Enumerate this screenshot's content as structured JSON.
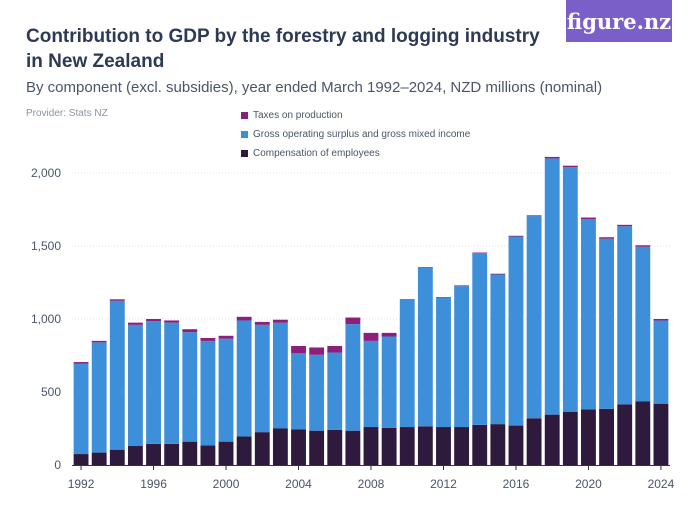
{
  "header": {
    "title": "Contribution to GDP by the forestry and logging industry in New Zealand",
    "subtitle": "By component (excl. subsidies), year ended March 1992–2024, NZD millions (nominal)",
    "provider": "Provider: Stats NZ",
    "logo": "figure.nz"
  },
  "colors": {
    "taxes": "#8b1f7a",
    "surplus": "#3d8fd9",
    "employees": "#2e1a3d",
    "grid": "#e0e0e0",
    "axis": "#333333"
  },
  "chart_data": {
    "type": "bar",
    "stacked": true,
    "title": "Contribution to GDP by the forestry and logging industry in New Zealand",
    "subtitle": "By component (excl. subsidies), year ended March 1992–2024, NZD millions (nominal)",
    "xlabel": "",
    "ylabel": "",
    "ylim": [
      0,
      2200
    ],
    "yticks": [
      0,
      500,
      1000,
      1500,
      2000
    ],
    "ytick_labels": [
      "0",
      "500",
      "1,000",
      "1,500",
      "2,000"
    ],
    "xtick_labels": [
      "1992",
      "1996",
      "2000",
      "2004",
      "2008",
      "2012",
      "2016",
      "2020",
      "2024"
    ],
    "grid": "horizontal",
    "legend_position": "top",
    "categories": [
      "1992",
      "1993",
      "1994",
      "1995",
      "1996",
      "1997",
      "1998",
      "1999",
      "2000",
      "2001",
      "2002",
      "2003",
      "2004",
      "2005",
      "2006",
      "2007",
      "2008",
      "2009",
      "2010",
      "2011",
      "2012",
      "2013",
      "2014",
      "2015",
      "2016",
      "2017",
      "2018",
      "2019",
      "2020",
      "2021",
      "2022",
      "2023",
      "2024"
    ],
    "series": [
      {
        "name": "Compensation of employees",
        "values": [
          75,
          85,
          105,
          130,
          145,
          145,
          160,
          135,
          160,
          195,
          225,
          250,
          245,
          235,
          240,
          235,
          260,
          255,
          260,
          265,
          260,
          260,
          275,
          280,
          270,
          320,
          345,
          365,
          380,
          385,
          415,
          435,
          420
        ]
      },
      {
        "name": "Gross operating surplus and gross mixed income",
        "values": [
          620,
          755,
          1020,
          830,
          840,
          830,
          750,
          715,
          705,
          795,
          735,
          725,
          520,
          520,
          530,
          730,
          590,
          625,
          870,
          1085,
          885,
          965,
          1175,
          1025,
          1295,
          1385,
          1755,
          1675,
          1305,
          1165,
          1220,
          1060,
          570
        ]
      },
      {
        "name": "Taxes on production",
        "values": [
          10,
          10,
          10,
          15,
          15,
          15,
          20,
          20,
          20,
          25,
          20,
          20,
          50,
          50,
          45,
          45,
          55,
          25,
          5,
          5,
          5,
          5,
          5,
          5,
          5,
          5,
          10,
          10,
          10,
          10,
          10,
          10,
          10
        ]
      }
    ]
  }
}
